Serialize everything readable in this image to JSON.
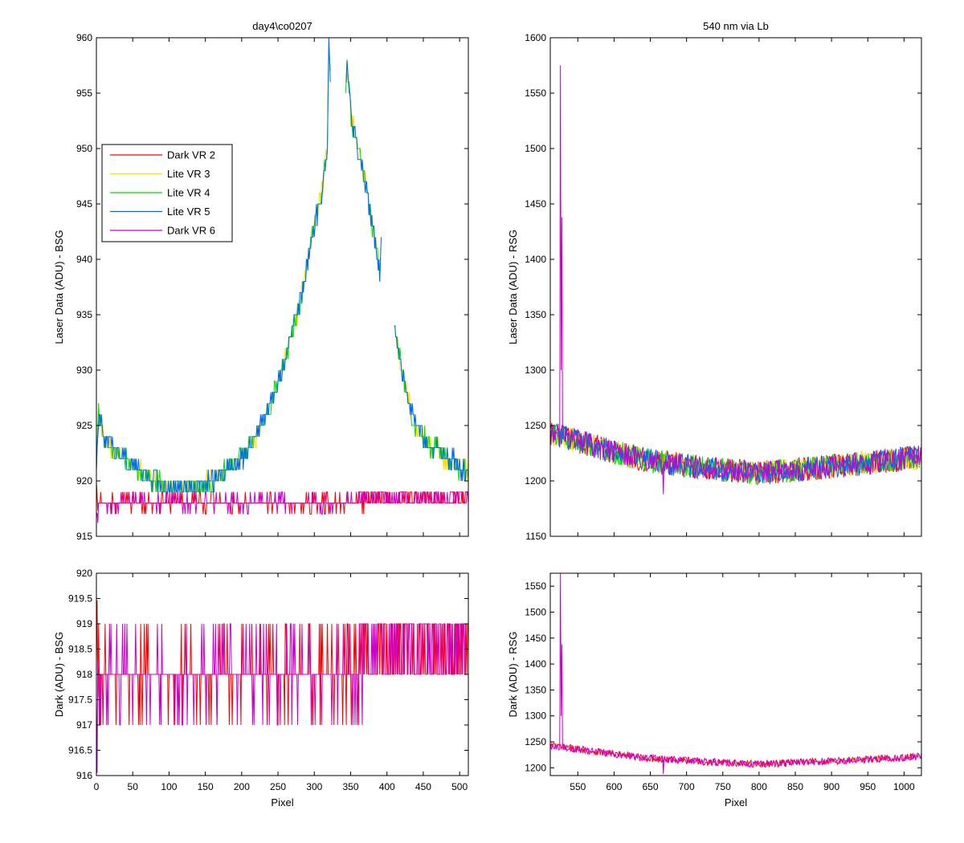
{
  "chart_data": [
    {
      "id": "top_left",
      "type": "line",
      "title": "day4\\co0207",
      "xlabel": "",
      "ylabel": "Laser Data (ADU) - BSG",
      "xlim": [
        0,
        512
      ],
      "ylim": [
        915,
        960
      ],
      "xticks": [
        0,
        50,
        100,
        150,
        200,
        250,
        300,
        350,
        400,
        450,
        500
      ],
      "yticks": [
        915,
        920,
        925,
        930,
        935,
        940,
        945,
        950,
        955,
        960
      ],
      "show_xticklabels": false,
      "legend": {
        "position": "upper-left"
      },
      "series": [
        {
          "name": "Dark VR 2",
          "color": "#ff0000",
          "kind": "dark",
          "base": 918,
          "x_range": [
            0,
            512
          ]
        },
        {
          "name": "Lite VR 3",
          "color": "#ffdd00",
          "kind": "lite",
          "x_range": [
            0,
            512
          ]
        },
        {
          "name": "Lite VR 4",
          "color": "#00dd00",
          "kind": "lite",
          "x_range": [
            0,
            512
          ]
        },
        {
          "name": "Lite VR 5",
          "color": "#0066ff",
          "kind": "lite",
          "x_range": [
            0,
            512
          ]
        },
        {
          "name": "Dark VR 6",
          "color": "#cc00cc",
          "kind": "dark",
          "base": 918,
          "x_range": [
            0,
            512
          ]
        }
      ],
      "lite_profile": {
        "x": [
          0,
          3,
          10,
          20,
          40,
          60,
          80,
          100,
          120,
          140,
          160,
          180,
          200,
          220,
          240,
          260,
          280,
          300,
          310,
          318,
          320,
          330,
          340,
          345,
          350,
          360,
          370,
          380,
          390,
          392,
          410,
          420,
          430,
          440,
          450,
          460,
          470,
          480,
          490,
          500,
          512
        ],
        "y": [
          921,
          926,
          924,
          923,
          922,
          921,
          920,
          919.5,
          919.5,
          919.5,
          920,
          921,
          922,
          924,
          927,
          931,
          936,
          943,
          946,
          950,
          960,
          942,
          952,
          958,
          953,
          950,
          947,
          943,
          939,
          941,
          934,
          930,
          927,
          925,
          924,
          923,
          923,
          922,
          922,
          921,
          921
        ]
      }
    },
    {
      "id": "top_right",
      "type": "line",
      "title": "540 nm via Lb",
      "xlabel": "",
      "ylabel": "Laser Data (ADU) - RSG",
      "xlim": [
        512,
        1024
      ],
      "ylim": [
        1150,
        1600
      ],
      "xticks": [
        550,
        600,
        650,
        700,
        750,
        800,
        850,
        900,
        950,
        1000
      ],
      "yticks": [
        1150,
        1200,
        1250,
        1300,
        1350,
        1400,
        1450,
        1500,
        1550,
        1600
      ],
      "show_xticklabels": false,
      "spike": {
        "x": 526,
        "y": 1575,
        "x2": 528,
        "y2": 1438
      },
      "series": [
        {
          "name": "Dark VR 2",
          "color": "#ff0000"
        },
        {
          "name": "Lite VR 3",
          "color": "#ffdd00"
        },
        {
          "name": "Lite VR 4",
          "color": "#00dd00"
        },
        {
          "name": "Lite VR 5",
          "color": "#0066ff"
        },
        {
          "name": "Dark VR 6",
          "color": "#cc00cc"
        }
      ],
      "trend": {
        "x": [
          512,
          550,
          600,
          650,
          700,
          750,
          800,
          850,
          900,
          950,
          1000,
          1024
        ],
        "y": [
          1243,
          1236,
          1226,
          1218,
          1214,
          1210,
          1207,
          1210,
          1213,
          1216,
          1220,
          1222
        ]
      }
    },
    {
      "id": "bottom_left",
      "type": "line",
      "title": "",
      "xlabel": "Pixel",
      "ylabel": "Dark (ADU) - BSG",
      "xlim": [
        0,
        512
      ],
      "ylim": [
        916,
        920
      ],
      "xticks": [
        0,
        50,
        100,
        150,
        200,
        250,
        300,
        350,
        400,
        450,
        500
      ],
      "yticks": [
        916,
        916.5,
        917,
        917.5,
        918,
        918.5,
        919,
        919.5,
        920
      ],
      "show_xticklabels": true,
      "series": [
        {
          "name": "Dark VR 2",
          "color": "#ff0000",
          "base": 918
        },
        {
          "name": "Dark VR 6",
          "color": "#cc00cc",
          "base": 918
        }
      ]
    },
    {
      "id": "bottom_right",
      "type": "line",
      "title": "",
      "xlabel": "Pixel",
      "ylabel": "Dark (ADU) - RSG",
      "xlim": [
        512,
        1024
      ],
      "ylim": [
        1185,
        1575
      ],
      "xticks": [
        550,
        600,
        650,
        700,
        750,
        800,
        850,
        900,
        950,
        1000
      ],
      "yticks": [
        1200,
        1250,
        1300,
        1350,
        1400,
        1450,
        1500,
        1550
      ],
      "show_xticklabels": true,
      "spike": {
        "x": 526,
        "y": 1575,
        "x2": 528,
        "y2": 1438
      },
      "series": [
        {
          "name": "Dark VR 2",
          "color": "#ff0000"
        },
        {
          "name": "Dark VR 6",
          "color": "#cc00cc"
        }
      ],
      "trend": {
        "x": [
          512,
          550,
          600,
          650,
          700,
          750,
          800,
          850,
          900,
          950,
          1000,
          1024
        ],
        "y": [
          1243,
          1236,
          1226,
          1218,
          1214,
          1210,
          1207,
          1210,
          1213,
          1216,
          1220,
          1222
        ]
      }
    }
  ]
}
